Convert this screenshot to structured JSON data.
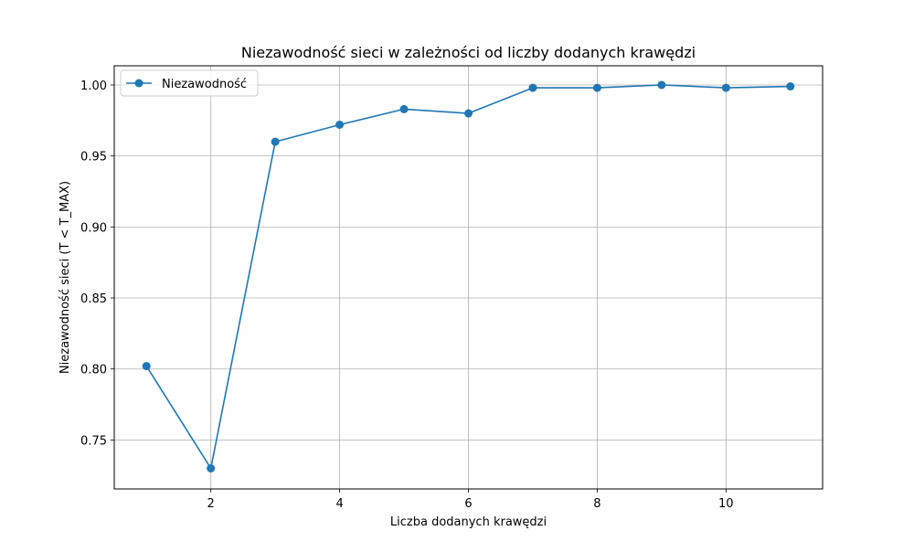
{
  "chart_data": {
    "type": "line",
    "title": "Niezawodność sieci w zależności od liczby dodanych krawędzi",
    "xlabel": "Liczba dodanych krawędzi",
    "ylabel": "Niezawodność sieci (T < T_MAX)",
    "xlim": [
      0.5,
      11.5
    ],
    "ylim": [
      0.7155,
      1.0135
    ],
    "xticks": [
      2,
      4,
      6,
      8,
      10
    ],
    "xtick_labels": [
      "2",
      "4",
      "6",
      "8",
      "10"
    ],
    "yticks": [
      0.75,
      0.8,
      0.85,
      0.9,
      0.95,
      1.0
    ],
    "ytick_labels": [
      "0.75",
      "0.80",
      "0.85",
      "0.90",
      "0.95",
      "1.00"
    ],
    "grid": true,
    "legend_position": "upper-left",
    "series": [
      {
        "name": "Niezawodność",
        "color": "#1f77b4",
        "marker": "circle",
        "x": [
          1,
          2,
          3,
          4,
          5,
          6,
          7,
          8,
          9,
          10,
          11
        ],
        "y": [
          0.802,
          0.73,
          0.96,
          0.972,
          0.983,
          0.98,
          0.998,
          0.998,
          1.0,
          0.998,
          0.999
        ]
      }
    ]
  }
}
